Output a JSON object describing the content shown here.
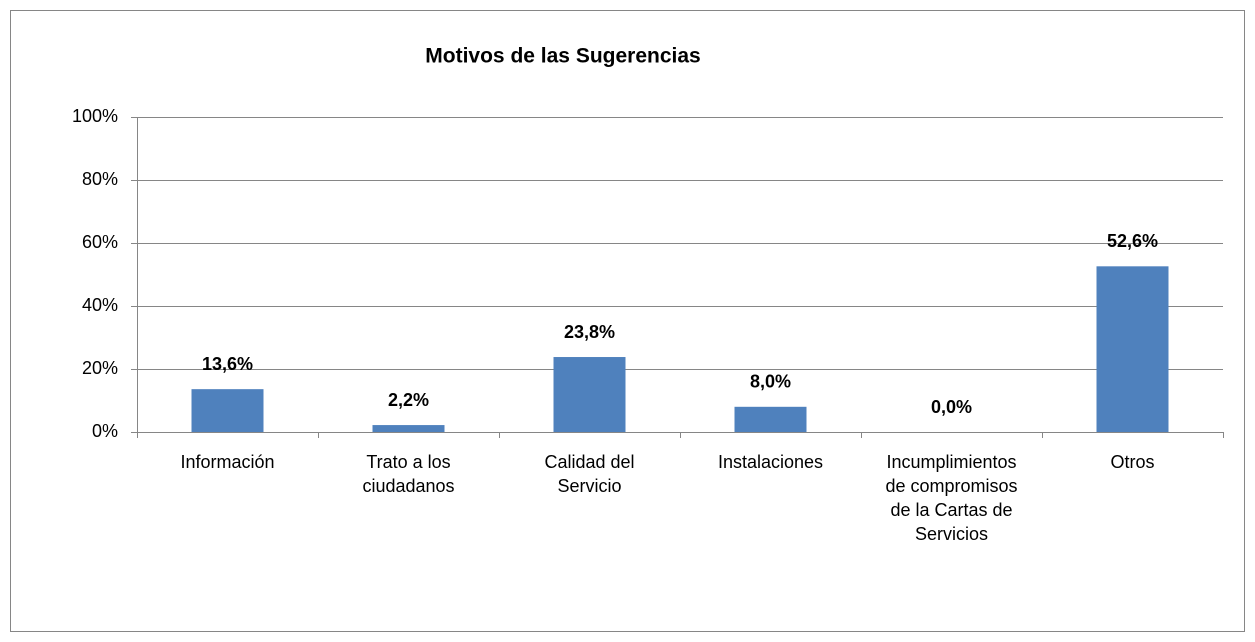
{
  "chart_data": {
    "type": "bar",
    "title": "Motivos de las Sugerencias",
    "categories": [
      "Información",
      "Trato a los ciudadanos",
      "Calidad del Servicio",
      "Instalaciones",
      "Incumplimientos de compromisos de la Cartas de Servicios",
      "Otros"
    ],
    "values": [
      13.6,
      2.2,
      23.8,
      8.0,
      0.0,
      52.6
    ],
    "value_labels": [
      "13,6%",
      "2,2%",
      "23,8%",
      "8,0%",
      "0,0%",
      "52,6%"
    ],
    "color": "#4f81bd",
    "ylim": [
      0,
      100
    ],
    "yticks": [
      {
        "value": 0,
        "label": "0%"
      },
      {
        "value": 20,
        "label": "20%"
      },
      {
        "value": 40,
        "label": "40%"
      },
      {
        "value": 60,
        "label": "60%"
      },
      {
        "value": 80,
        "label": "80%"
      },
      {
        "value": 100,
        "label": "100%"
      }
    ],
    "grid": true
  }
}
